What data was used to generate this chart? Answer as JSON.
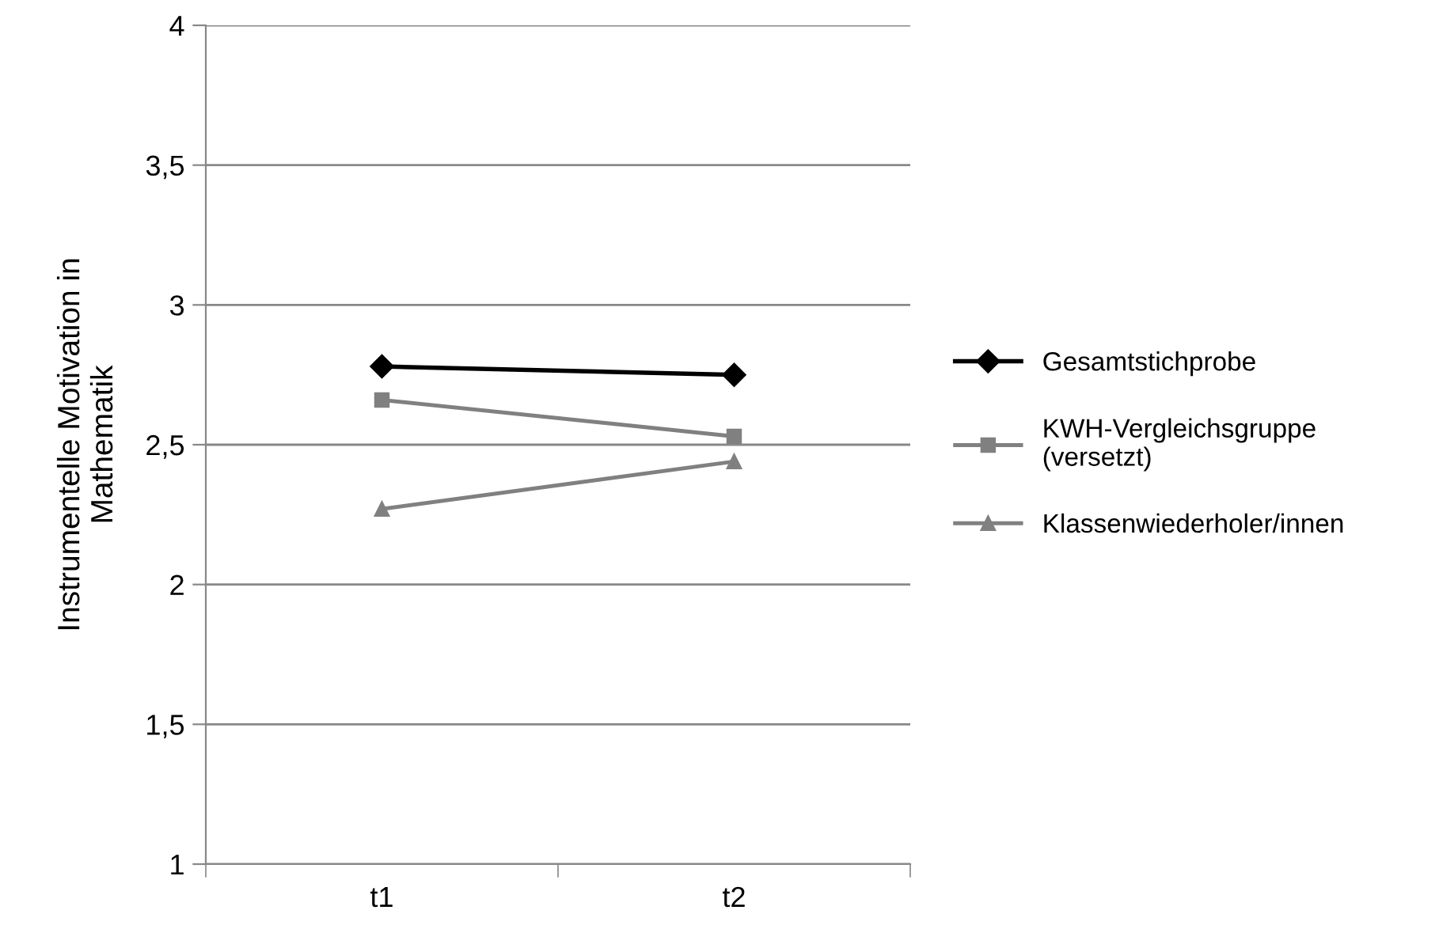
{
  "chart_data": {
    "type": "line",
    "ylabel": "Instrumentelle Motivation in\nMathematik",
    "categories": [
      "t1",
      "t2"
    ],
    "series": [
      {
        "name": "Gesamtstichprobe",
        "color": "#000000",
        "marker": "diamond",
        "values": [
          2.78,
          2.75
        ]
      },
      {
        "name": "KWH-Vergleichsgruppe\n(versetzt)",
        "color": "#808080",
        "marker": "square",
        "values": [
          2.66,
          2.53
        ]
      },
      {
        "name": "Klassenwiederholer/innen",
        "color": "#808080",
        "marker": "triangle",
        "values": [
          2.27,
          2.44
        ]
      }
    ],
    "ylim": [
      1,
      4
    ],
    "yticks": [
      1,
      {
        "value": 1.5,
        "label": "1,5"
      },
      2,
      {
        "value": 2.5,
        "label": "2,5"
      },
      3,
      {
        "value": 3.5,
        "label": "3,5"
      },
      4
    ],
    "grid": "y",
    "legend": "right"
  }
}
